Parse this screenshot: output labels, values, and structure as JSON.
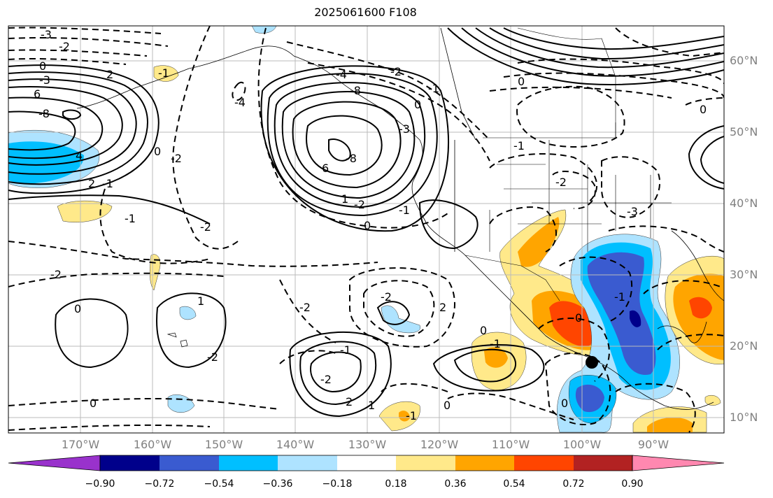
{
  "title": "2025061600 F108",
  "lon_labels": [
    "170°W",
    "160°W",
    "150°W",
    "140°W",
    "130°W",
    "120°W",
    "110°W",
    "100°W",
    "90°W"
  ],
  "lat_labels": [
    "60°N",
    "50°N",
    "40°N",
    "30°N",
    "20°N",
    "10°N"
  ],
  "colorbar": {
    "ticks": [
      "−0.90",
      "−0.72",
      "−0.54",
      "−0.36",
      "−0.18",
      "0.18",
      "0.36",
      "0.54",
      "0.72",
      "0.90"
    ],
    "colors": [
      "#9932cc",
      "#00008b",
      "#3a5bd0",
      "#00bfff",
      "#aee3ff",
      "#ffffff",
      "#ffe98a",
      "#ffa500",
      "#ff4500",
      "#b22222",
      "#ff88b0"
    ]
  },
  "contour_labels": [
    "-3",
    "-2",
    "0",
    "-3",
    "2",
    "6",
    "-8",
    "4",
    "2",
    "-1",
    "-1",
    "-4",
    "-2",
    "-1",
    "0",
    "-8",
    "6",
    "-2",
    "-2",
    "1",
    "-3",
    "0",
    "-1",
    "-4",
    "-8",
    "0",
    "-1",
    "-2",
    "-2",
    "0",
    "-2",
    "-2",
    "1",
    "-2",
    "-1",
    "-2",
    "0",
    "2",
    "1",
    "0",
    "-1",
    "-1",
    "0",
    "2",
    "0",
    "0",
    "-1",
    "0",
    "-1",
    "-3",
    "0",
    "-2"
  ],
  "marker": "black-dot"
}
